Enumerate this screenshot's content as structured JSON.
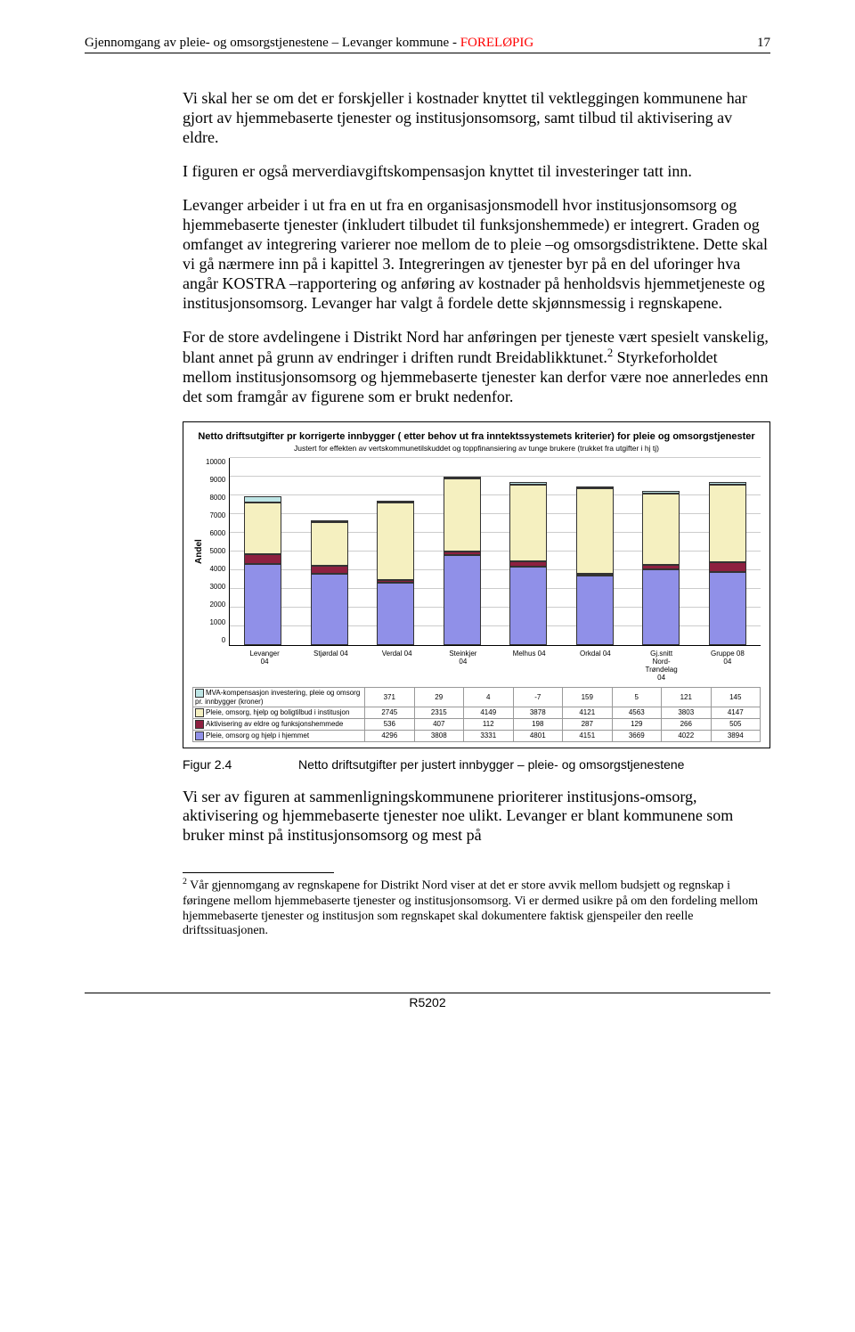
{
  "header": {
    "left": "Gjennomgang av pleie- og omsorgstjenestene – Levanger kommune - ",
    "prelim": "FORELØPIG",
    "pagenum": "17"
  },
  "paragraphs": {
    "p1": "Vi skal her se om det er forskjeller i kostnader knyttet til vektleggingen kommunene har gjort av hjemmebaserte tjenester og institusjonsomsorg, samt tilbud til aktivisering av eldre.",
    "p2": "I figuren er også merverdiavgiftskompensasjon knyttet til investeringer tatt inn.",
    "p3": "Levanger arbeider i ut fra en ut fra en organisasjonsmodell hvor institusjonsomsorg og hjemmebaserte tjenester (inkludert tilbudet til funksjonshemmede) er integrert. Graden og omfanget av integrering varierer noe mellom de to pleie –og omsorgsdistriktene. Dette skal vi gå nærmere inn på i kapittel 3. Integreringen av tjenester byr på en del uforinger hva angår KOSTRA –rapportering og anføring av kostnader på henholdsvis hjemmetjeneste og institusjonsomsorg. Levanger har valgt å fordele dette skjønnsmessig i regnskapene.",
    "p4a": "For de store avdelingene i Distrikt Nord har anføringen per tjeneste vært spesielt vanskelig, blant annet på grunn av endringer i driften rundt Breidablikktunet.",
    "p4b": " Styrkeforholdet mellom institusjonsomsorg og hjemmebaserte tjenester kan derfor være noe annerledes enn det som framgår av figurene som er brukt nedenfor.",
    "p5": "Vi ser av figuren at sammenligningskommunene prioriterer institusjons-omsorg, aktivisering og hjemmebaserte tjenester noe ulikt. Levanger er blant kommunene som bruker minst på institusjonsomsorg og mest på"
  },
  "chart": {
    "title": "Netto driftsutgifter pr korrigerte innbygger ( etter behov ut fra inntektssystemets kriterier) for pleie og omsorgstjenester",
    "subtitle": "Justert for effekten av vertskommunetilskuddet og toppfinansiering av tunge brukere (trukket fra utgifter i hj tj)",
    "ylabel": "Andel",
    "ymax": 10000,
    "ystep": 1000,
    "yticks": [
      "10000",
      "9000",
      "8000",
      "7000",
      "6000",
      "5000",
      "4000",
      "3000",
      "2000",
      "1000",
      "0"
    ],
    "categories": [
      "Levanger 04",
      "Stjørdal 04",
      "Verdal 04",
      "Steinkjer 04",
      "Melhus 04",
      "Orkdal 04",
      "Gj.snitt Nord-Trøndelag 04",
      "Gruppe 08 04"
    ],
    "series": [
      {
        "label": "Pleie, omsorg og hjelp i hjemmet",
        "color": "#9090e8",
        "values": [
          4296,
          3808,
          3331,
          4801,
          4151,
          3669,
          4022,
          3894
        ]
      },
      {
        "label": "Aktivisering av eldre og funksjonshemmede",
        "color": "#8e2040",
        "values": [
          536,
          407,
          112,
          198,
          287,
          129,
          266,
          505
        ]
      },
      {
        "label": "Pleie, omsorg, hjelp og boligtilbud i institusjon",
        "color": "#f5f0c0",
        "values": [
          2745,
          2315,
          4149,
          3878,
          4121,
          4563,
          3803,
          4147
        ]
      },
      {
        "label": "MVA-kompensasjon investering, pleie og omsorg pr. innbygger (kroner)",
        "color": "#bde5e5",
        "values": [
          371,
          29,
          4,
          -7,
          159,
          5,
          121,
          145
        ]
      }
    ]
  },
  "figure": {
    "num": "Figur 2.4",
    "caption": "Netto driftsutgifter per justert innbygger – pleie- og omsorgstjenestene"
  },
  "footnote": {
    "marker": "2",
    "text": " Vår gjennomgang av regnskapene for Distrikt Nord viser at det er store avvik mellom budsjett og regnskap i føringene mellom hjemmebaserte tjenester og institusjonsomsorg. Vi er dermed usikre på om den fordeling mellom hjemmebaserte tjenester og institusjon som regnskapet skal dokumentere faktisk gjenspeiler den reelle driftssituasjonen."
  },
  "footer": "R5202"
}
